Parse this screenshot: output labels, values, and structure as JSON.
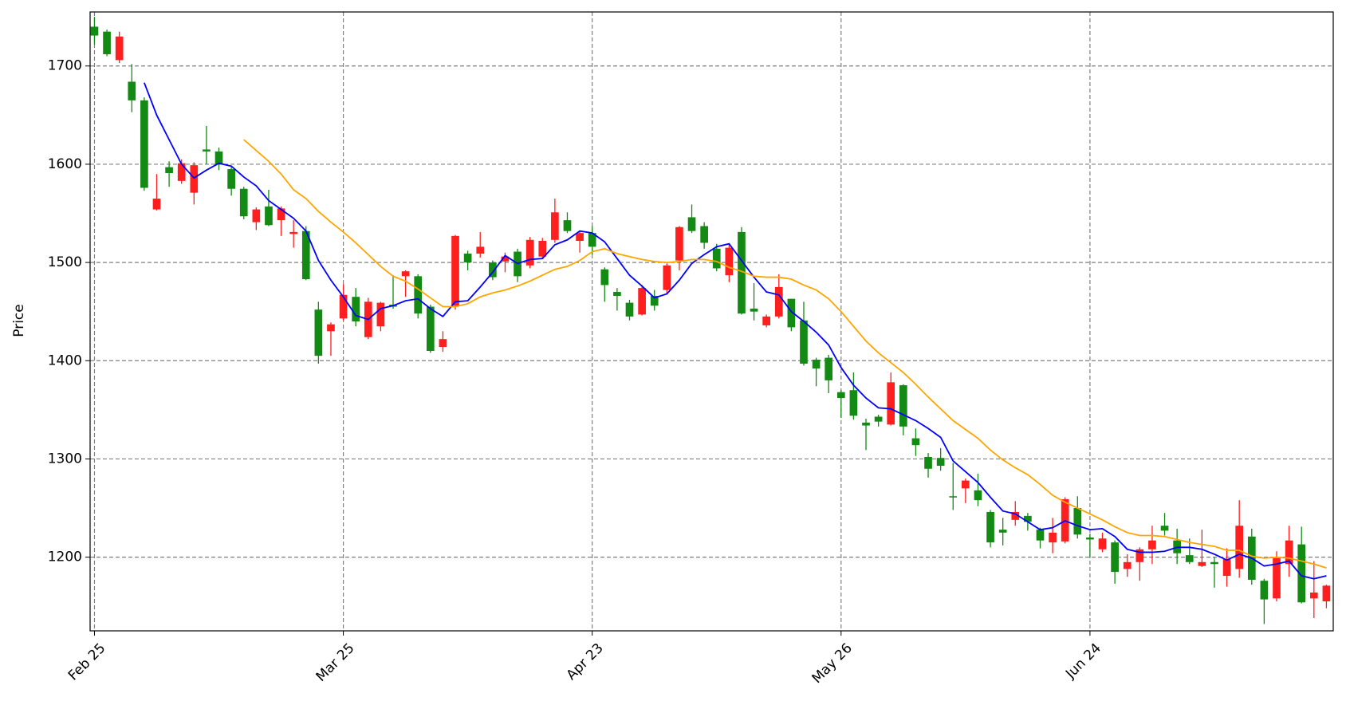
{
  "chart_data": {
    "type": "candlestick",
    "y_label": "Price",
    "categories": [
      "Feb 25",
      null,
      null,
      null,
      null,
      null,
      null,
      null,
      null,
      null,
      null,
      null,
      null,
      null,
      null,
      null,
      null,
      null,
      null,
      null,
      "Mar 25",
      null,
      null,
      null,
      null,
      null,
      null,
      null,
      null,
      null,
      null,
      null,
      null,
      null,
      null,
      null,
      null,
      null,
      null,
      null,
      "Apr 23",
      null,
      null,
      null,
      null,
      null,
      null,
      null,
      null,
      null,
      null,
      null,
      null,
      null,
      null,
      null,
      null,
      null,
      null,
      null,
      "May 26",
      null,
      null,
      null,
      null,
      null,
      null,
      null,
      null,
      null,
      null,
      null,
      null,
      null,
      null,
      null,
      null,
      null,
      null,
      null,
      "Jun 24",
      null,
      null,
      null,
      null,
      null,
      null,
      null,
      null,
      null,
      null,
      null,
      null,
      null,
      null,
      null,
      null,
      null,
      null,
      null
    ],
    "open": [
      1740,
      1735,
      1706,
      1684,
      1665,
      1554,
      1597,
      1583,
      1571,
      1615,
      1613,
      1595,
      1575,
      1541,
      1557,
      1543,
      1529,
      1532,
      1452,
      1430,
      1443,
      1465,
      1424,
      1435,
      1457,
      1486,
      1486,
      1455,
      1414,
      1456,
      1509,
      1509,
      1500,
      1501,
      1511,
      1497,
      1506,
      1523,
      1543,
      1522,
      1530,
      1493,
      1470,
      1459,
      1447,
      1466,
      1472,
      1502,
      1546,
      1537,
      1514,
      1487,
      1531,
      1453,
      1436,
      1445,
      1463,
      1441,
      1401,
      1403,
      1368,
      1370,
      1337,
      1343,
      1335,
      1375,
      1321,
      1302,
      1301,
      1262,
      1270,
      1268,
      1246,
      1228,
      1238,
      1242,
      1228,
      1215,
      1216,
      1250,
      1220,
      1208,
      1215,
      1188,
      1195,
      1208,
      1232,
      1217,
      1202,
      1191,
      1195,
      1181,
      1188,
      1221,
      1176,
      1158,
      1193,
      1213,
      1158,
      1155
    ],
    "high": [
      1750,
      1737,
      1735,
      1702,
      1668,
      1590,
      1603,
      1605,
      1602,
      1639,
      1617,
      1597,
      1577,
      1556,
      1574,
      1557,
      1543,
      1537,
      1460,
      1439,
      1478,
      1474,
      1464,
      1460,
      1487,
      1492,
      1488,
      1457,
      1430,
      1528,
      1512,
      1531,
      1502,
      1510,
      1514,
      1526,
      1525,
      1565,
      1551,
      1532,
      1537,
      1495,
      1474,
      1462,
      1477,
      1472,
      1499,
      1537,
      1559,
      1541,
      1519,
      1518,
      1536,
      1479,
      1447,
      1488,
      1463,
      1460,
      1403,
      1406,
      1370,
      1388,
      1341,
      1345,
      1388,
      1376,
      1331,
      1306,
      1311,
      1296,
      1280,
      1285,
      1248,
      1240,
      1257,
      1245,
      1230,
      1240,
      1261,
      1262,
      1224,
      1225,
      1217,
      1203,
      1210,
      1232,
      1245,
      1229,
      1219,
      1228,
      1200,
      1209,
      1258,
      1229,
      1178,
      1206,
      1232,
      1231,
      1196,
      1172
    ],
    "low": [
      1722,
      1710,
      1703,
      1653,
      1573,
      1553,
      1577,
      1580,
      1559,
      1600,
      1594,
      1568,
      1544,
      1533,
      1537,
      1527,
      1515,
      1482,
      1397,
      1405,
      1441,
      1435,
      1422,
      1430,
      1453,
      1465,
      1443,
      1408,
      1409,
      1452,
      1492,
      1505,
      1482,
      1490,
      1480,
      1494,
      1504,
      1520,
      1530,
      1510,
      1508,
      1460,
      1451,
      1441,
      1446,
      1451,
      1468,
      1492,
      1530,
      1514,
      1491,
      1480,
      1447,
      1441,
      1434,
      1443,
      1430,
      1395,
      1374,
      1367,
      1342,
      1340,
      1309,
      1333,
      1334,
      1324,
      1303,
      1281,
      1288,
      1248,
      1255,
      1252,
      1210,
      1212,
      1232,
      1227,
      1209,
      1204,
      1214,
      1219,
      1200,
      1205,
      1173,
      1180,
      1176,
      1193,
      1222,
      1193,
      1193,
      1190,
      1169,
      1170,
      1179,
      1172,
      1132,
      1155,
      1180,
      1153,
      1138,
      1148
    ],
    "close": [
      1731,
      1712,
      1730,
      1665,
      1576,
      1565,
      1591,
      1601,
      1599,
      1613,
      1600,
      1575,
      1547,
      1554,
      1538,
      1555,
      1531,
      1483,
      1405,
      1437,
      1467,
      1440,
      1460,
      1459,
      1455,
      1491,
      1448,
      1410,
      1422,
      1527,
      1500,
      1516,
      1485,
      1506,
      1486,
      1523,
      1522,
      1551,
      1532,
      1530,
      1516,
      1477,
      1466,
      1445,
      1474,
      1456,
      1497,
      1536,
      1532,
      1520,
      1494,
      1515,
      1448,
      1450,
      1445,
      1475,
      1434,
      1397,
      1392,
      1380,
      1362,
      1344,
      1334,
      1338,
      1378,
      1333,
      1314,
      1290,
      1293,
      1261,
      1278,
      1258,
      1215,
      1225,
      1246,
      1236,
      1217,
      1225,
      1259,
      1223,
      1218,
      1219,
      1185,
      1195,
      1208,
      1217,
      1227,
      1204,
      1195,
      1195,
      1193,
      1198,
      1232,
      1177,
      1157,
      1199,
      1217,
      1154,
      1164,
      1171
    ],
    "up_color": "#ff1f1f",
    "down_color": "#138a13",
    "ma": [
      {
        "color": "#0000ff",
        "values": [
          null,
          null,
          null,
          null,
          1683,
          1650,
          1625,
          1600,
          1586,
          1594,
          1601,
          1598,
          1587,
          1578,
          1563,
          1554,
          1545,
          1532,
          1502,
          1482,
          1465,
          1446,
          1442,
          1453,
          1456,
          1461,
          1463,
          1453,
          1445,
          1460,
          1461,
          1475,
          1490,
          1507,
          1499,
          1503,
          1504,
          1518,
          1523,
          1532,
          1530,
          1521,
          1504,
          1487,
          1476,
          1464,
          1468,
          1482,
          1499,
          1508,
          1516,
          1519,
          1502,
          1485,
          1470,
          1467,
          1450,
          1440,
          1429,
          1416,
          1393,
          1375,
          1362,
          1352,
          1351,
          1345,
          1339,
          1331,
          1322,
          1298,
          1287,
          1276,
          1261,
          1247,
          1244,
          1236,
          1228,
          1230,
          1237,
          1232,
          1228,
          1229,
          1221,
          1208,
          1205,
          1205,
          1206,
          1210,
          1210,
          1208,
          1203,
          1197,
          1203,
          1199,
          1191,
          1193,
          1196,
          1181,
          1178,
          1181
        ]
      },
      {
        "color": "#ffa500",
        "values": [
          null,
          null,
          null,
          null,
          null,
          null,
          null,
          null,
          null,
          null,
          null,
          null,
          1625,
          1614,
          1603,
          1590,
          1574,
          1565,
          1552,
          1541,
          1531,
          1520,
          1508,
          1496,
          1486,
          1481,
          1473,
          1464,
          1455,
          1455,
          1458,
          1465,
          1469,
          1472,
          1476,
          1481,
          1487,
          1493,
          1496,
          1502,
          1511,
          1514,
          1509,
          1506,
          1503,
          1501,
          1500,
          1501,
          1503,
          1503,
          1501,
          1495,
          1491,
          1486,
          1485,
          1485,
          1483,
          1477,
          1472,
          1463,
          1450,
          1435,
          1420,
          1408,
          1398,
          1388,
          1376,
          1363,
          1351,
          1339,
          1330,
          1321,
          1309,
          1299,
          1291,
          1284,
          1274,
          1263,
          1256,
          1250,
          1244,
          1238,
          1231,
          1225,
          1222,
          1222,
          1221,
          1218,
          1215,
          1213,
          1211,
          1207,
          1207,
          1201,
          1199,
          1200,
          1199,
          1196,
          1193,
          1189
        ]
      }
    ],
    "ylim": [
      1125,
      1755
    ],
    "yticks": [
      1200,
      1300,
      1400,
      1500,
      1600,
      1700
    ],
    "grid": true
  }
}
